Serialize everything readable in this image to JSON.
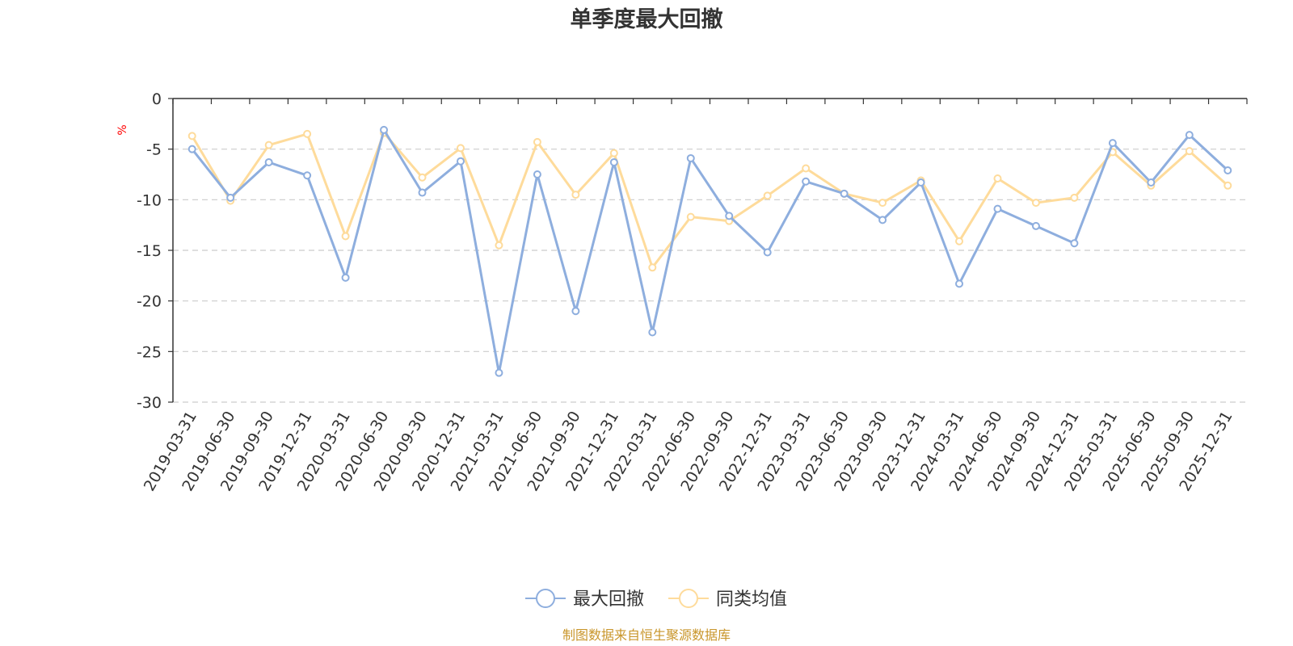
{
  "chart_data": {
    "type": "line",
    "title": "单季度最大回撤",
    "ylabel": "%",
    "ylim": [
      -30,
      0
    ],
    "yticks": [
      "0",
      "-5",
      "-10",
      "-15",
      "-20",
      "-25",
      "-30"
    ],
    "ytick_values": [
      0,
      -5,
      -10,
      -15,
      -20,
      -25,
      -30
    ],
    "grid": true,
    "legend_position": "bottom-center",
    "categories": [
      "2019-03-31",
      "2019-06-30",
      "2019-09-30",
      "2019-12-31",
      "2020-03-31",
      "2020-06-30",
      "2020-09-30",
      "2020-12-31",
      "2021-03-31",
      "2021-06-30",
      "2021-09-30",
      "2021-12-31",
      "2022-03-31",
      "2022-06-30",
      "2022-09-30",
      "2022-12-31",
      "2023-03-31",
      "2023-06-30",
      "2023-09-30",
      "2023-12-31",
      "2024-03-31",
      "2024-06-30",
      "2024-09-30",
      "2024-12-31",
      "2025-03-31",
      "2025-06-30",
      "2025-09-30",
      "2025-12-31"
    ],
    "series": [
      {
        "name": "最大回撤",
        "color": "#8eaede",
        "values": [
          -5.0,
          -9.8,
          -6.3,
          -7.6,
          -17.7,
          -3.1,
          -9.3,
          -6.2,
          -27.1,
          -7.5,
          -21.0,
          -6.3,
          -23.1,
          -5.9,
          -11.6,
          -15.2,
          -8.2,
          -9.4,
          -12.0,
          -8.3,
          -18.3,
          -10.9,
          -12.6,
          -14.3,
          -4.4,
          -8.3,
          -3.6,
          -7.1
        ]
      },
      {
        "name": "同类均值",
        "color": "#fedb9b",
        "values": [
          -3.7,
          -10.1,
          -4.6,
          -3.5,
          -13.6,
          -3.4,
          -7.8,
          -4.9,
          -14.5,
          -4.3,
          -9.5,
          -5.4,
          -16.7,
          -11.7,
          -12.1,
          -9.6,
          -6.9,
          -9.4,
          -10.3,
          -8.1,
          -14.1,
          -7.9,
          -10.3,
          -9.8,
          -5.3,
          -8.6,
          -5.2,
          -8.6
        ]
      }
    ]
  },
  "legend": {
    "items": [
      {
        "label": "最大回撤",
        "color": "#8eaede"
      },
      {
        "label": "同类均值",
        "color": "#fedb9b"
      }
    ]
  },
  "footer": {
    "source": "制图数据来自恒生聚源数据库",
    "color": "#c9962b"
  }
}
